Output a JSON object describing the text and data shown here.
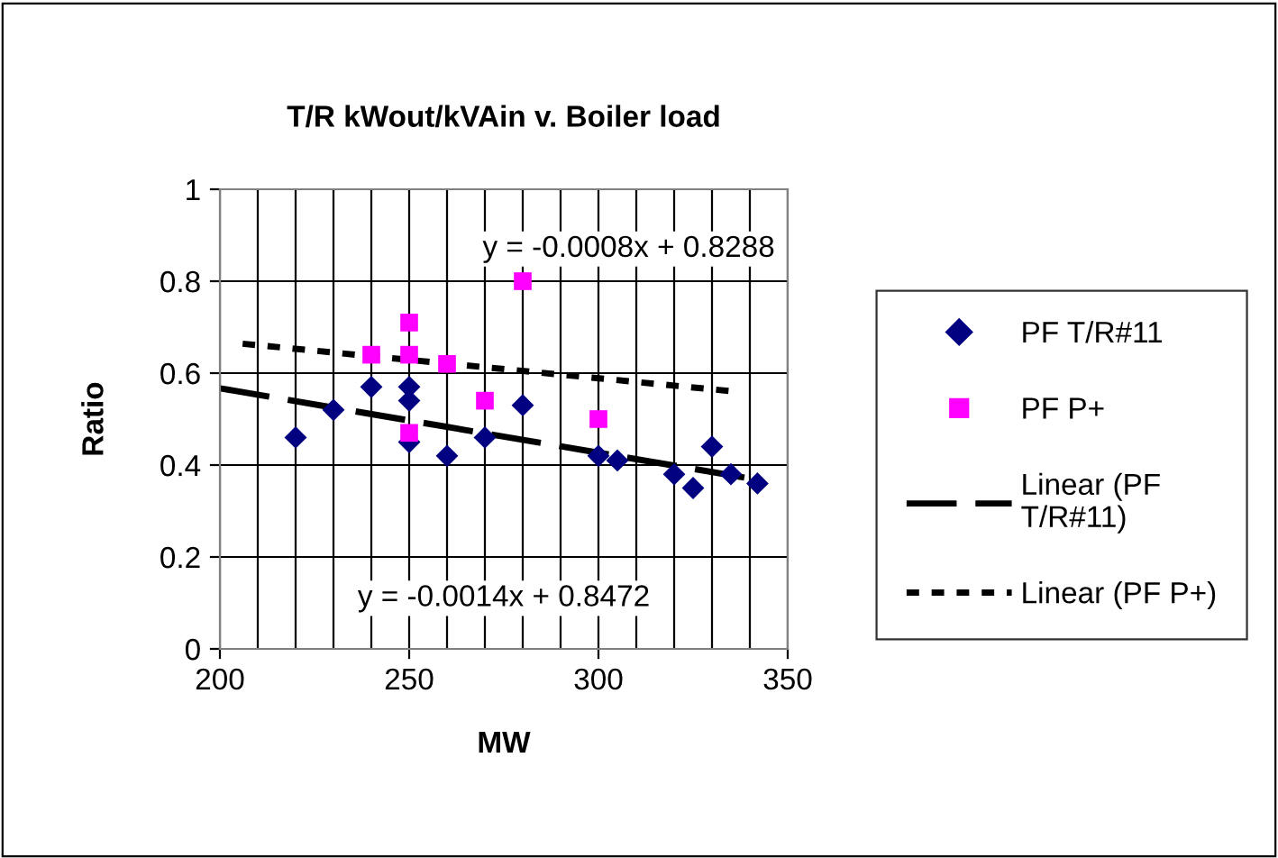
{
  "chart_data": {
    "type": "scatter",
    "title": "T/R kWout/kVAin v. Boiler load",
    "xlabel": "MW",
    "ylabel": "Ratio",
    "xlim": [
      200,
      350
    ],
    "ylim": [
      0,
      1
    ],
    "xticks": [
      200,
      {
        "value": 210,
        "label": null
      },
      {
        "value": 220,
        "label": null
      },
      {
        "value": 230,
        "label": null
      },
      {
        "value": 240,
        "label": null
      },
      250,
      {
        "value": 260,
        "label": null
      },
      {
        "value": 270,
        "label": null
      },
      {
        "value": 280,
        "label": null
      },
      {
        "value": 290,
        "label": null
      },
      300,
      {
        "value": 310,
        "label": null
      },
      {
        "value": 320,
        "label": null
      },
      {
        "value": 330,
        "label": null
      },
      {
        "value": 340,
        "label": null
      },
      350
    ],
    "yticks": [
      0,
      0.2,
      0.4,
      0.6,
      0.8,
      1
    ],
    "grid": true,
    "legend": "right",
    "series": [
      {
        "name": "PF T/R#11",
        "color": "#000080",
        "marker": "diamond",
        "x": [
          220,
          230,
          240,
          250,
          250,
          250,
          260,
          270,
          280,
          300,
          305,
          320,
          325,
          330,
          335,
          342
        ],
        "values": [
          0.46,
          0.52,
          0.57,
          0.57,
          0.54,
          0.45,
          0.42,
          0.46,
          0.53,
          0.42,
          0.41,
          0.38,
          0.35,
          0.44,
          0.38,
          0.36
        ]
      },
      {
        "name": "PF P+",
        "color": "#ff00ff",
        "marker": "square",
        "x": [
          240,
          250,
          250,
          250,
          260,
          270,
          280,
          300
        ],
        "values": [
          0.64,
          0.71,
          0.64,
          0.47,
          0.62,
          0.54,
          0.8,
          0.5
        ]
      },
      {
        "name": "Linear (PF T/R#11)",
        "type": "line",
        "color": "#000000",
        "line_style": "dashed",
        "x": [
          200,
          342
        ],
        "values": [
          0.567,
          0.368
        ]
      },
      {
        "name": "Linear (PF P+)",
        "type": "line",
        "color": "#000000",
        "line_style": "dotted",
        "x": [
          206,
          336
        ],
        "values": [
          0.664,
          0.56
        ]
      }
    ],
    "annotations": [
      "y = -0.0008x + 0.8288",
      "y = -0.0014x + 0.8472"
    ]
  }
}
